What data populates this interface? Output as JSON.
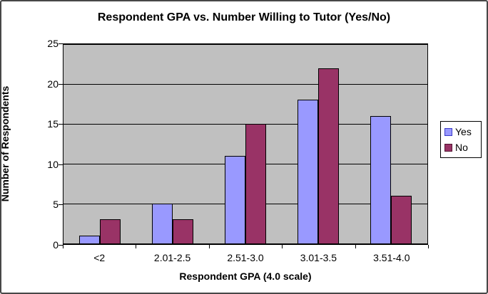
{
  "chart_data": {
    "type": "bar",
    "title": "Respondent GPA vs. Number Willing to Tutor (Yes/No)",
    "xlabel": "Respondent GPA (4.0 scale)",
    "ylabel": "Number of Respondents",
    "categories": [
      "<2",
      "2.01-2.5",
      "2.51-3.0",
      "3.01-3.5",
      "3.51-4.0"
    ],
    "series": [
      {
        "name": "Yes",
        "color": "#9999FF",
        "swatch_border": "#3A3AC8",
        "values": [
          1,
          5,
          11,
          18,
          16
        ]
      },
      {
        "name": "No",
        "color": "#993366",
        "swatch_border": "#521431",
        "values": [
          3,
          3,
          15,
          22,
          6
        ]
      }
    ],
    "ylim": [
      0,
      25
    ],
    "yticks": [
      0,
      5,
      10,
      15,
      20,
      25
    ],
    "grid": true,
    "legend_position": "right",
    "plot_bg": "#C0C0C0",
    "gridline_color": "#000000",
    "bar_outline_color": "#000000"
  }
}
